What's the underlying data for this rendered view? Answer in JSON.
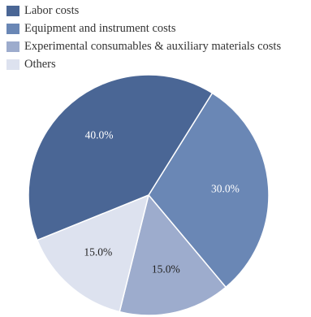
{
  "chart_data": {
    "type": "pie",
    "title": "",
    "slices": [
      {
        "label": "Labor costs",
        "value": 40.0,
        "display": "40.0%",
        "color": "#4a6695",
        "text_color": "#ffffff"
      },
      {
        "label": "Equipment and instrument costs",
        "value": 30.0,
        "display": "30.0%",
        "color": "#6a87b5",
        "text_color": "#ffffff"
      },
      {
        "label": "Experimental consumables & auxiliary materials costs",
        "value": 15.0,
        "display": "15.0%",
        "color": "#9daccd",
        "text_color": "#222222"
      },
      {
        "label": "Others",
        "value": 15.0,
        "display": "15.0%",
        "color": "#dde2ef",
        "text_color": "#222222"
      }
    ],
    "legend_position": "top-left",
    "start_direction": "clockwise from upper-right"
  }
}
